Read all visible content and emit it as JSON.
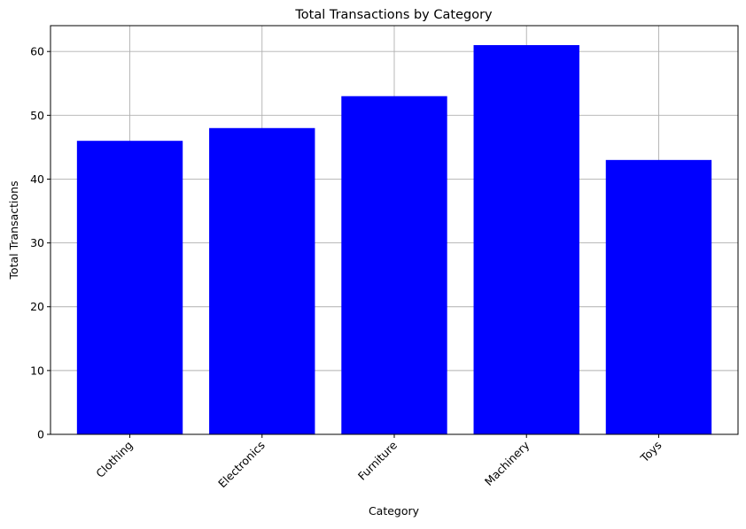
{
  "chart_data": {
    "type": "bar",
    "title": "Total Transactions by Category",
    "xlabel": "Category",
    "ylabel": "Total Transactions",
    "categories": [
      "Clothing",
      "Electronics",
      "Furniture",
      "Machinery",
      "Toys"
    ],
    "values": [
      46,
      48,
      53,
      61,
      43
    ],
    "ylim": [
      0,
      64.05
    ],
    "yticks": [
      0,
      10,
      20,
      30,
      40,
      50,
      60
    ],
    "ytick_labels": [
      "0",
      "10",
      "20",
      "30",
      "40",
      "50",
      "60"
    ],
    "bar_color": "#0000ff",
    "grid": true,
    "xtick_rotation_deg": 45
  }
}
